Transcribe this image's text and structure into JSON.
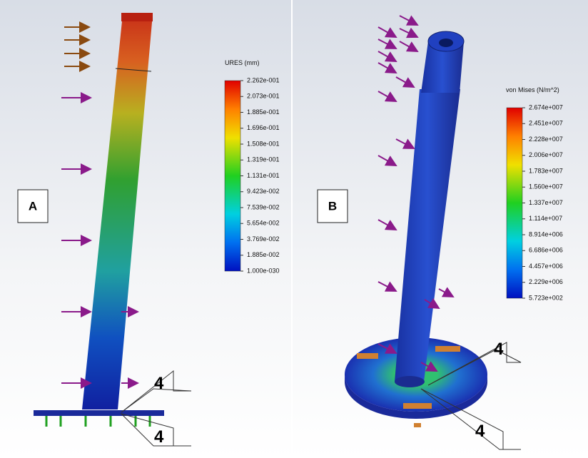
{
  "panel_a": {
    "label": "A",
    "legend": {
      "title": "URES (mm)",
      "ticks": [
        "2.262e-001",
        "2.073e-001",
        "1.885e-001",
        "1.696e-001",
        "1.508e-001",
        "1.319e-001",
        "1.131e-001",
        "9.423e-002",
        "7.539e-002",
        "5.654e-002",
        "3.769e-002",
        "1.885e-002",
        "1.000e-030"
      ]
    },
    "callouts": [
      "4",
      "4"
    ]
  },
  "panel_b": {
    "label": "B",
    "legend": {
      "title": "von Mises (N/m^2)",
      "ticks": [
        "2.674e+007",
        "2.451e+007",
        "2.228e+007",
        "2.006e+007",
        "1.783e+007",
        "1.560e+007",
        "1.337e+007",
        "1.114e+007",
        "8.914e+006",
        "6.686e+006",
        "4.457e+006",
        "2.229e+006",
        "5.723e+002"
      ]
    },
    "callouts": [
      "4",
      "4"
    ]
  }
}
